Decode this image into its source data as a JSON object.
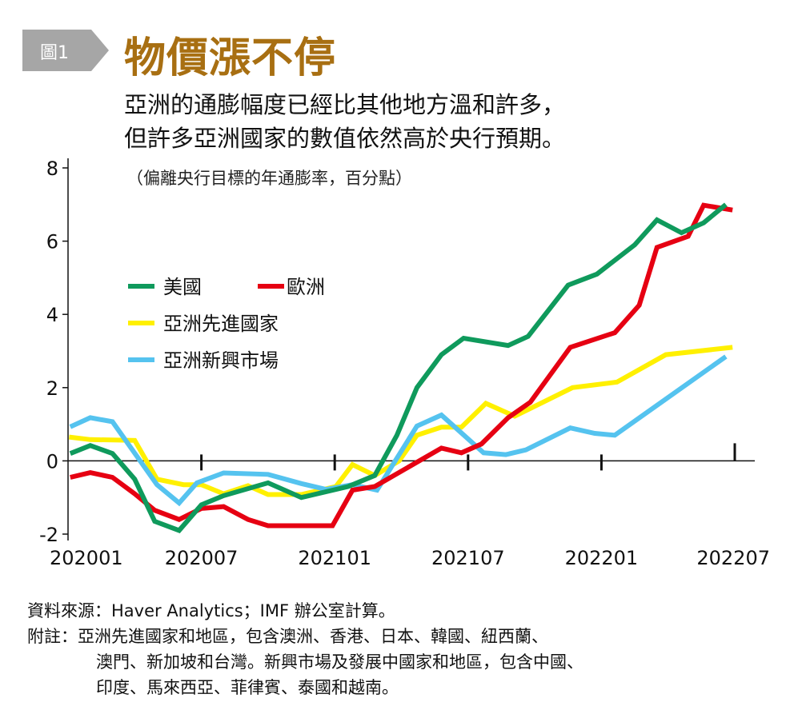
{
  "figure": {
    "badge": "圖1",
    "title": "物價漲不停",
    "subtitle_lines": [
      "亞洲的通膨幅度已經比其他地方溫和許多，",
      "但許多亞洲國家的數值依然高於央行預期。"
    ],
    "unit": "（偏離央行目標的年通膨率，百分點）",
    "badge_color": "#a6a6a6",
    "title_color": "#a86f12"
  },
  "footer": {
    "source": "資料來源：Haver Analytics；IMF 辦公室計算。",
    "note_label": "附註：",
    "note_lines": [
      "亞洲先進國家和地區，包含澳洲、香港、日本、韓國、紐西蘭、",
      "澳門、新加坡和台灣。新興市場及發展中國家和地區，包含中國、",
      "印度、馬來西亞、菲律賓、泰國和越南。"
    ]
  },
  "chart_data": {
    "type": "line",
    "title": "物價漲不停",
    "xlabel": "",
    "ylabel": "偏離央行目標的年通膨率，百分點",
    "x_unit": "months since 202001",
    "xlim": [
      0,
      30
    ],
    "ylim": [
      -2,
      8
    ],
    "yticks": [
      -2,
      0,
      2,
      4,
      6,
      8
    ],
    "xticks": [
      {
        "x": 0,
        "label": "202001"
      },
      {
        "x": 6,
        "label": "202007"
      },
      {
        "x": 12,
        "label": "202101"
      },
      {
        "x": 18,
        "label": "202107"
      },
      {
        "x": 24,
        "label": "202201"
      },
      {
        "x": 30,
        "label": "202207"
      }
    ],
    "grid": false,
    "legend_position": "upper-left",
    "series": [
      {
        "name": "美國",
        "color": "#0f9a5c",
        "x": [
          0.1,
          1,
          2,
          3,
          3.9,
          5,
          6,
          7,
          9,
          10.5,
          12.6,
          13.8,
          14.8,
          15.7,
          16.8,
          17.8,
          19.8,
          20.7,
          22.5,
          23.8,
          25.5,
          26.5,
          27.6,
          28.6,
          29.6
        ],
        "y": [
          0.2,
          0.42,
          0.2,
          -0.5,
          -1.65,
          -1.9,
          -1.2,
          -0.95,
          -0.6,
          -1.0,
          -0.7,
          -0.4,
          0.7,
          2.0,
          2.9,
          3.35,
          3.15,
          3.4,
          4.8,
          5.1,
          5.9,
          6.58,
          6.23,
          6.5,
          7.0
        ]
      },
      {
        "name": "歐洲",
        "color": "#e60012",
        "x": [
          0.1,
          1,
          2,
          3,
          3.9,
          5,
          6,
          7,
          8.1,
          9,
          11.9,
          12.8,
          13.8,
          16.8,
          17.7,
          18.6,
          19.8,
          20.8,
          22.6,
          24.6,
          25.7,
          26.5,
          27.9,
          28.6,
          29.9
        ],
        "y": [
          -0.45,
          -0.32,
          -0.45,
          -0.9,
          -1.35,
          -1.6,
          -1.3,
          -1.25,
          -1.6,
          -1.77,
          -1.77,
          -0.8,
          -0.7,
          0.35,
          0.22,
          0.46,
          1.18,
          1.6,
          3.1,
          3.5,
          4.25,
          5.83,
          6.13,
          6.98,
          6.85
        ]
      },
      {
        "name": "亞洲先進國家",
        "color": "#fff000",
        "x": [
          0.05,
          1,
          3,
          4,
          5.2,
          6,
          7,
          8.1,
          9,
          10.5,
          12.05,
          12.8,
          13.8,
          14.9,
          15.7,
          16.8,
          17.7,
          18.8,
          20.1,
          22.7,
          24.7,
          26.9,
          29.9
        ],
        "y": [
          0.65,
          0.58,
          0.56,
          -0.5,
          -0.65,
          -0.65,
          -0.9,
          -0.68,
          -0.92,
          -0.92,
          -0.7,
          -0.1,
          -0.4,
          0.0,
          0.7,
          0.92,
          0.92,
          1.57,
          1.22,
          2.0,
          2.15,
          2.9,
          3.1
        ]
      },
      {
        "name": "亞洲新興市場",
        "color": "#55c3ef",
        "x": [
          0.1,
          1,
          2,
          4,
          5,
          5.8,
          7,
          9,
          10.5,
          11.6,
          12.8,
          13.9,
          15.7,
          16.8,
          18.7,
          19.7,
          20.6,
          22.6,
          23.7,
          24.6,
          29.6
        ],
        "y": [
          0.93,
          1.18,
          1.07,
          -0.65,
          -1.15,
          -0.6,
          -0.33,
          -0.37,
          -0.62,
          -0.78,
          -0.65,
          -0.8,
          0.95,
          1.25,
          0.22,
          0.17,
          0.3,
          0.9,
          0.75,
          0.7,
          2.85
        ]
      }
    ],
    "legend": [
      {
        "name": "美國",
        "color": "#0f9a5c"
      },
      {
        "name": "歐洲",
        "color": "#e60012"
      },
      {
        "name": "亞洲先進國家",
        "color": "#fff000"
      },
      {
        "name": "亞洲新興市場",
        "color": "#55c3ef"
      }
    ]
  }
}
